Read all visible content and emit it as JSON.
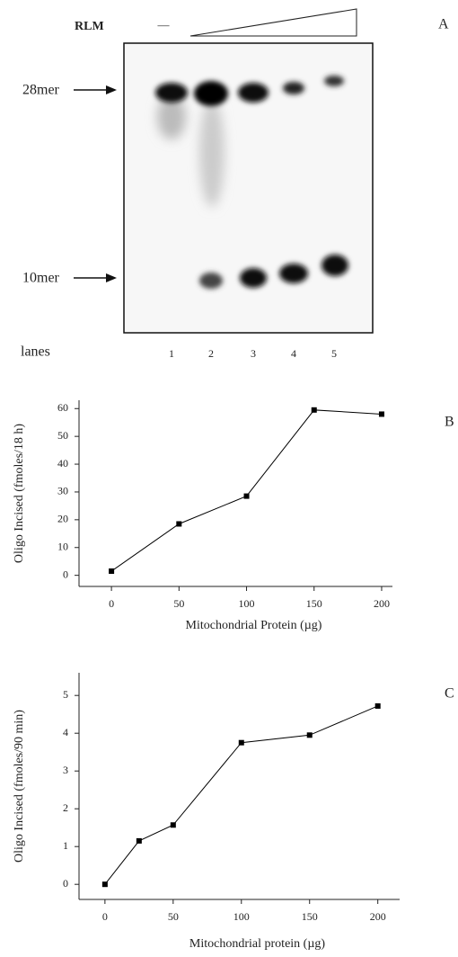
{
  "panel_a": {
    "panel_label": "A",
    "treatment_label": "RLM",
    "control_mark": "—",
    "upper_band": "28mer",
    "lower_band": "10mer",
    "lanes_label": "lanes",
    "lanes": [
      "1",
      "2",
      "3",
      "4",
      "5"
    ]
  },
  "chart_data": [
    {
      "type": "line",
      "panel_label": "B",
      "x_label": "Mitochondrial Protein (µg)",
      "y_label": "Oligo Incised (fmoles/18 h)",
      "x": [
        0,
        50,
        100,
        150,
        200
      ],
      "values": [
        1.5,
        18.5,
        28.5,
        59.5,
        58
      ],
      "color": "#000000",
      "xlim": [
        -24,
        208
      ],
      "ylim": [
        -4,
        63
      ],
      "xticks": [
        0,
        50,
        100,
        150,
        200
      ],
      "yticks": [
        0,
        10,
        20,
        30,
        40,
        50,
        60
      ]
    },
    {
      "type": "line",
      "panel_label": "C",
      "x_label": "Mitochondrial protein (µg)",
      "y_label": "Oligo Incised (fmoles/90 min)",
      "x": [
        0,
        25,
        50,
        100,
        150,
        200
      ],
      "values": [
        0,
        1.15,
        1.57,
        3.75,
        3.95,
        4.72
      ],
      "color": "#000000",
      "xlim": [
        -19,
        216
      ],
      "ylim": [
        -0.4,
        5.6
      ],
      "xticks": [
        0,
        50,
        100,
        150,
        200
      ],
      "yticks": [
        0,
        1,
        2,
        3,
        4,
        5
      ]
    }
  ]
}
